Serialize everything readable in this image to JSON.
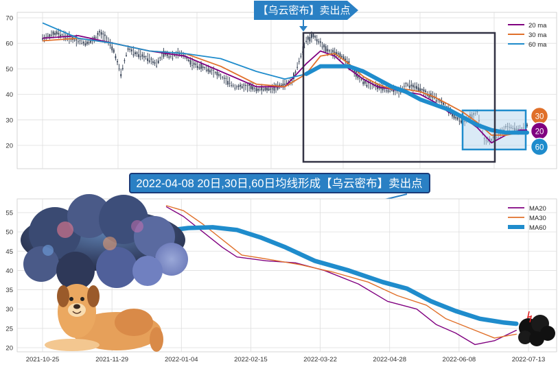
{
  "banner_top": {
    "text": "【乌云密布】卖出点"
  },
  "banner_middle": {
    "text": "2022-04-08 20日,30日,60日均线形成【乌云密布】卖出点"
  },
  "colors": {
    "ma20": "#800080",
    "ma30": "#e0702a",
    "ma60": "#1f8ccc",
    "candle": "#2e3a4e",
    "banner": "#2a80c4",
    "frame": "#333344",
    "grid": "#dddddd"
  },
  "badges": [
    {
      "label": "30",
      "color": "#e0702a"
    },
    {
      "label": "20",
      "color": "#800080"
    },
    {
      "label": "60",
      "color": "#1f8ccc"
    }
  ],
  "icons": [
    "storm-cloud-icon",
    "dog-icon",
    "small-cloud-icon"
  ],
  "chart_data": [
    {
      "type": "line",
      "id": "price_chart",
      "ylim": [
        12,
        70
      ],
      "yticks": [
        20,
        30,
        40,
        50,
        60,
        70
      ],
      "xlim": [
        0,
        272
      ],
      "legend": {
        "position": "top-right",
        "entries": [
          "20 ma",
          "30 ma",
          "60 ma"
        ]
      },
      "grid": true,
      "price_approx": [
        [
          0,
          62
        ],
        [
          4,
          63
        ],
        [
          8,
          64
        ],
        [
          12,
          63
        ],
        [
          16,
          62
        ],
        [
          20,
          61
        ],
        [
          24,
          60
        ],
        [
          28,
          61
        ],
        [
          32,
          64
        ],
        [
          36,
          62
        ],
        [
          40,
          57
        ],
        [
          44,
          48
        ],
        [
          48,
          58
        ],
        [
          52,
          56
        ],
        [
          56,
          55
        ],
        [
          60,
          54
        ],
        [
          64,
          52
        ],
        [
          68,
          56
        ],
        [
          72,
          55
        ],
        [
          76,
          56
        ],
        [
          80,
          55
        ],
        [
          84,
          52
        ],
        [
          88,
          51
        ],
        [
          92,
          50
        ],
        [
          96,
          49
        ],
        [
          100,
          47
        ],
        [
          104,
          45
        ],
        [
          108,
          43
        ],
        [
          112,
          43
        ],
        [
          116,
          43
        ],
        [
          120,
          42
        ],
        [
          124,
          42
        ],
        [
          128,
          42
        ],
        [
          132,
          43
        ],
        [
          136,
          44
        ],
        [
          140,
          45
        ],
        [
          144,
          53
        ],
        [
          148,
          61
        ],
        [
          152,
          63
        ],
        [
          156,
          60
        ],
        [
          160,
          57
        ],
        [
          164,
          56
        ],
        [
          168,
          55
        ],
        [
          172,
          52
        ],
        [
          176,
          48
        ],
        [
          180,
          45
        ],
        [
          184,
          44
        ],
        [
          188,
          43
        ],
        [
          192,
          42
        ],
        [
          196,
          42
        ],
        [
          200,
          41
        ],
        [
          204,
          44
        ],
        [
          208,
          43
        ],
        [
          212,
          42
        ],
        [
          216,
          40
        ],
        [
          220,
          39
        ],
        [
          224,
          37
        ],
        [
          228,
          34
        ],
        [
          232,
          31
        ],
        [
          236,
          29
        ],
        [
          240,
          31
        ],
        [
          244,
          33
        ],
        [
          248,
          22
        ],
        [
          252,
          22
        ],
        [
          256,
          24
        ],
        [
          260,
          27
        ],
        [
          264,
          27
        ],
        [
          268,
          26
        ],
        [
          272,
          28
        ]
      ],
      "series": [
        {
          "name": "20 ma",
          "points": [
            [
              0,
              62
            ],
            [
              20,
              63
            ],
            [
              40,
              60
            ],
            [
              60,
              57
            ],
            [
              80,
              55
            ],
            [
              100,
              49
            ],
            [
              120,
              43
            ],
            [
              136,
              43
            ],
            [
              148,
              52
            ],
            [
              156,
              57
            ],
            [
              164,
              55
            ],
            [
              172,
              50
            ],
            [
              180,
              46
            ],
            [
              188,
              43
            ],
            [
              196,
              42
            ],
            [
              204,
              41
            ],
            [
              212,
              40
            ],
            [
              220,
              37
            ],
            [
              228,
              33
            ],
            [
              236,
              31
            ],
            [
              244,
              27
            ],
            [
              252,
              21
            ],
            [
              260,
              24
            ],
            [
              268,
              26
            ],
            [
              272,
              26
            ]
          ]
        },
        {
          "name": "30 ma",
          "points": [
            [
              0,
              61
            ],
            [
              20,
              62
            ],
            [
              40,
              60
            ],
            [
              60,
              57
            ],
            [
              80,
              56
            ],
            [
              100,
              51
            ],
            [
              120,
              44
            ],
            [
              136,
              43
            ],
            [
              148,
              48
            ],
            [
              156,
              55
            ],
            [
              164,
              56
            ],
            [
              172,
              52
            ],
            [
              180,
              47
            ],
            [
              188,
              44
            ],
            [
              196,
              42
            ],
            [
              204,
              42
            ],
            [
              212,
              41
            ],
            [
              220,
              39
            ],
            [
              228,
              36
            ],
            [
              236,
              33
            ],
            [
              244,
              29
            ],
            [
              252,
              24
            ],
            [
              260,
              24
            ],
            [
              268,
              25
            ],
            [
              272,
              25
            ]
          ]
        },
        {
          "name": "60 ma",
          "points": [
            [
              0,
              68
            ],
            [
              20,
              62
            ],
            [
              40,
              60
            ],
            [
              60,
              57
            ],
            [
              80,
              56
            ],
            [
              100,
              54
            ],
            [
              120,
              49
            ],
            [
              136,
              46
            ],
            [
              148,
              48
            ],
            [
              156,
              51
            ],
            [
              164,
              51
            ],
            [
              172,
              51
            ],
            [
              180,
              49
            ],
            [
              188,
              46
            ],
            [
              196,
              43
            ],
            [
              204,
              41
            ],
            [
              212,
              38
            ],
            [
              220,
              36
            ],
            [
              228,
              34
            ],
            [
              236,
              31
            ],
            [
              244,
              28
            ],
            [
              252,
              26
            ],
            [
              260,
              25
            ],
            [
              268,
              25
            ],
            [
              272,
              25
            ]
          ]
        }
      ]
    },
    {
      "type": "line",
      "id": "ma_chart",
      "xlabels": [
        "2021-10-25",
        "2021-11-29",
        "2022-01-04",
        "2022-02-15",
        "2022-03-22",
        "2022-04-28",
        "2022-06-08",
        "2022-07-13"
      ],
      "xlim": [
        0,
        10
      ],
      "ylim": [
        19,
        57
      ],
      "yticks": [
        20,
        25,
        30,
        35,
        40,
        45,
        50,
        55
      ],
      "legend": {
        "position": "top-right",
        "entries": [
          "MA20",
          "MA30",
          "MA60"
        ]
      },
      "grid": true,
      "series": [
        {
          "name": "MA20",
          "points": [
            [
              2.55,
              56.5
            ],
            [
              2.9,
              54
            ],
            [
              3.3,
              50
            ],
            [
              3.7,
              46
            ],
            [
              4.0,
              43.5
            ],
            [
              4.6,
              42.5
            ],
            [
              5.2,
              42
            ],
            [
              5.8,
              40
            ],
            [
              6.5,
              36.5
            ],
            [
              7.1,
              32
            ],
            [
              7.7,
              30
            ],
            [
              8.1,
              26
            ],
            [
              8.5,
              23.8
            ],
            [
              8.9,
              20.8
            ],
            [
              9.3,
              21.8
            ],
            [
              9.75,
              24.5
            ]
          ]
        },
        {
          "name": "MA30",
          "points": [
            [
              2.55,
              56.8
            ],
            [
              2.9,
              55.5
            ],
            [
              3.3,
              52
            ],
            [
              3.7,
              48
            ],
            [
              4.1,
              44
            ],
            [
              4.6,
              43
            ],
            [
              5.3,
              41.5
            ],
            [
              6.0,
              39.5
            ],
            [
              6.7,
              37
            ],
            [
              7.3,
              33.5
            ],
            [
              7.9,
              31
            ],
            [
              8.3,
              27.5
            ],
            [
              8.8,
              25
            ],
            [
              9.3,
              22.5
            ],
            [
              9.75,
              23.5
            ]
          ]
        },
        {
          "name": "MA60",
          "points": [
            [
              2.55,
              50.3
            ],
            [
              3.0,
              51
            ],
            [
              3.5,
              51.2
            ],
            [
              4.0,
              50.5
            ],
            [
              4.5,
              48.5
            ],
            [
              5.0,
              46
            ],
            [
              5.6,
              42.5
            ],
            [
              6.3,
              40
            ],
            [
              7.0,
              37
            ],
            [
              7.5,
              35.3
            ],
            [
              8.0,
              32
            ],
            [
              8.5,
              29.5
            ],
            [
              9.0,
              27.5
            ],
            [
              9.5,
              26.5
            ],
            [
              9.75,
              26.2
            ]
          ]
        }
      ]
    }
  ]
}
